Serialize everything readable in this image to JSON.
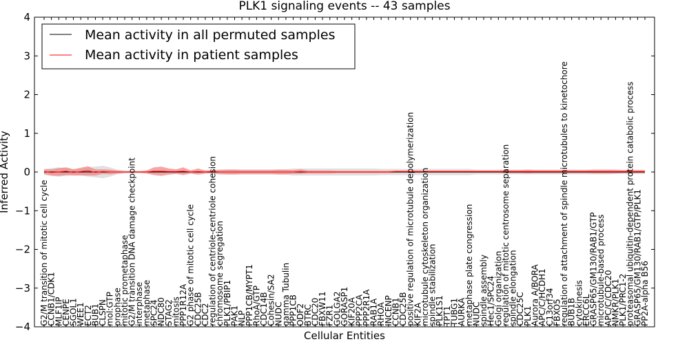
{
  "chart_data": {
    "type": "line",
    "title": "PLK1 signaling events -- 43 samples",
    "xlabel": "Cellular Entities",
    "ylabel": "Inferred Activity",
    "ylim": [
      -4,
      4
    ],
    "yticks": [
      -4,
      -3,
      -2,
      -1,
      0,
      1,
      2,
      3,
      4
    ],
    "legend_position": "top-left",
    "categories": [
      "G2/M transition of mitotic cell cycle",
      "CCNB1/CDK1",
      "MLF1IP",
      "CENPE",
      "SGOL1",
      "WEE1",
      "ECT2",
      "BUB1",
      "CLSPN",
      "mol:GTP",
      "prophase",
      "mitotic prometaphase",
      "G2/M transition DNA damage checkpoint",
      "interphase",
      "metaphase",
      "SPC24",
      "NDC80",
      "STAG2",
      "mitosis",
      "PPP1R12A",
      "G2 phase of mitotic cell cycle",
      "CDC25B",
      "CDC2",
      "regulation of centriole-centriole cohesion",
      "chromosome segregation",
      "PLK1/PBIP1",
      "PAK1",
      "NLP",
      "PPP1CB/MYPT1",
      "RhoA/GTP",
      "CDC14B",
      "Cohesin/SA2",
      "NUDC",
      "gamma Tubulin",
      "PPP1CB",
      "ODF2",
      "BTRC",
      "CDC20",
      "FBXW11",
      "FZR1",
      "GOLGA2",
      "GORASP1",
      "KIF20A",
      "PPP2CA",
      "PPP2R1A",
      "RAB1A",
      "RHOA",
      "INCENP",
      "CCNB1",
      "CDC25B",
      "positive regulation of microtubule depolymerization",
      "KIF2A",
      "microtubule cytoskeleton organization",
      "spindle stabilization",
      "PLK1S1",
      "TPT1",
      "TUBG1",
      "AURKA",
      "metaphase plate congression",
      "NUDC",
      "spindle assembly",
      "Hec1/SPC24",
      "Golgi organization",
      "regulation of mitotic centrosome separation",
      "spindle elongation",
      "CDC25C",
      "PLK1",
      "Aurora A/BORA",
      "APC/C/HCDH1",
      "C13orf34",
      "FBXO5",
      "regulation of attachment of spindle microtubules to kinetochore",
      "BUB1B",
      "cytokinesis",
      "ERCC6L",
      "GRASP65/GM130/RAB1/GTP",
      "microtubule-based process",
      "APC/C/CDC20",
      "NMKR/PLK1",
      "PLK1/PRC1-2",
      "proteasomal ubiquitin-dependent protein catabolic process",
      "GRASP65/GM130/RAB1/GTP/PLK1",
      "PP2A-alpha B56"
    ],
    "series": [
      {
        "name": "Mean activity in all permuted samples",
        "color": "#000000",
        "values": [
          0,
          0,
          0,
          0,
          0,
          0,
          0,
          0,
          0,
          0,
          0,
          0,
          0,
          0,
          0,
          0,
          0,
          0,
          0,
          0,
          0,
          0,
          0,
          0,
          0,
          0,
          0,
          0,
          0,
          0,
          0,
          0,
          0,
          0,
          0,
          0,
          0,
          0,
          0,
          0,
          0,
          0,
          0,
          0,
          0,
          0,
          0,
          0,
          0,
          0,
          0,
          0,
          0,
          0,
          0,
          0,
          0,
          0,
          0,
          0,
          0,
          0,
          0,
          0,
          0,
          0,
          0,
          0,
          0,
          0,
          0,
          0,
          0,
          0,
          0,
          0,
          0,
          0,
          0,
          0,
          0,
          0,
          0
        ],
        "band_half_width": [
          0.08,
          0.1,
          0.12,
          0.1,
          0.08,
          0.08,
          0.12,
          0.14,
          0.16,
          0.12,
          0.06,
          0.04,
          0.04,
          0.03,
          0.03,
          0.03,
          0.03,
          0.03,
          0.03,
          0.03,
          0.03,
          0.03,
          0.03,
          0.05,
          0.07,
          0.07,
          0.07,
          0.07,
          0.07,
          0.07,
          0.07,
          0.07,
          0.07,
          0.07,
          0.09,
          0.09,
          0.09,
          0.09,
          0.09,
          0.09,
          0.09,
          0.09,
          0.09,
          0.09,
          0.09,
          0.09,
          0.08,
          0.08,
          0.08,
          0.08,
          0.08,
          0.08,
          0.08,
          0.08,
          0.08,
          0.08,
          0.08,
          0.08,
          0.08,
          0.06,
          0.06,
          0.06,
          0.06,
          0.06,
          0.06,
          0.06,
          0.06,
          0.06,
          0.06,
          0.06,
          0.06,
          0.06,
          0.06,
          0.06,
          0.06,
          0.06,
          0.06,
          0.06,
          0.05,
          0.05,
          0.05,
          0.05,
          0.05
        ]
      },
      {
        "name": "Mean activity in patient samples",
        "color": "#ff0000",
        "values": [
          0.01,
          -0.01,
          0,
          0.02,
          -0.01,
          0.01,
          0.03,
          -0.01,
          0.01,
          0,
          0,
          0,
          0,
          0,
          0,
          0.02,
          0.02,
          0.01,
          0.01,
          0.02,
          0,
          0.01,
          0,
          0.01,
          0,
          0,
          0,
          0,
          0,
          0,
          0,
          0,
          0,
          0,
          0,
          0.01,
          0,
          0,
          0,
          0,
          0,
          0,
          0,
          0,
          0,
          0,
          0,
          0,
          0.01,
          0.01,
          0.01,
          0.01,
          0.01,
          0.01,
          0.01,
          0.01,
          0.01,
          0.01,
          0.01,
          0.01,
          0.01,
          0.01,
          0.01,
          0.01,
          0.01,
          0.01,
          0.01,
          0.01,
          0.01,
          0.01,
          0.01,
          0.01,
          0.01,
          0.01,
          0.01,
          0.01,
          0.01,
          0.01,
          0.01,
          0.01,
          0.01,
          0.01,
          0.01
        ],
        "band_half_width": [
          0.06,
          0.08,
          0.1,
          0.1,
          0.08,
          0.1,
          0.12,
          0.08,
          0.06,
          0.06,
          0.04,
          0.02,
          0.02,
          0.02,
          0.04,
          0.1,
          0.12,
          0.08,
          0.06,
          0.1,
          0.04,
          0.08,
          0.04,
          0.04,
          0.05,
          0.06,
          0.06,
          0.05,
          0.05,
          0.05,
          0.05,
          0.05,
          0.06,
          0.06,
          0.05,
          0.06,
          0.04,
          0.04,
          0.04,
          0.04,
          0.03,
          0.03,
          0.03,
          0.03,
          0.03,
          0.03,
          0.03,
          0.03,
          0.03,
          0.03,
          0.03,
          0.03,
          0.03,
          0.03,
          0.03,
          0.03,
          0.03,
          0.03,
          0.03,
          0.03,
          0.03,
          0.03,
          0.03,
          0.04,
          0.04,
          0.04,
          0.05,
          0.04,
          0.04,
          0.04,
          0.04,
          0.04,
          0.04,
          0.04,
          0.04,
          0.05,
          0.05,
          0.05,
          0.05,
          0.04,
          0.04,
          0.04,
          0.04
        ]
      }
    ]
  }
}
